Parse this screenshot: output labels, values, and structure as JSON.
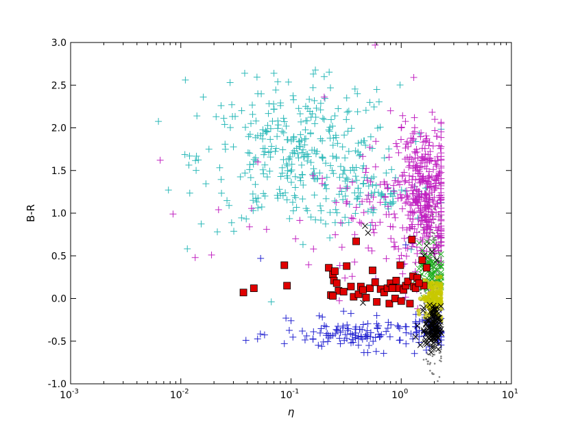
{
  "chart_data": {
    "type": "scatter",
    "title": "",
    "xlabel": "η",
    "ylabel": "B-R",
    "xscale": "log",
    "xlim": [
      0.001,
      10
    ],
    "ylim": [
      -1.0,
      3.0
    ],
    "grid": false,
    "x_ticks": [
      {
        "value": 0.001,
        "base": "10",
        "exp": "-3"
      },
      {
        "value": 0.01,
        "base": "10",
        "exp": "-2"
      },
      {
        "value": 0.1,
        "base": "10",
        "exp": "-1"
      },
      {
        "value": 1,
        "base": "10",
        "exp": "0"
      },
      {
        "value": 10,
        "base": "10",
        "exp": "1"
      }
    ],
    "y_ticks": [
      "-1.0",
      "-0.5",
      "0.0",
      "0.5",
      "1.0",
      "1.5",
      "2.0",
      "2.5",
      "3.0"
    ],
    "series": [
      {
        "marker": "dot",
        "color": "#808080",
        "clusters": [
          {
            "x": 2.0,
            "y": 0.3,
            "sx": 0.06,
            "sy": 0.45,
            "n": 260
          },
          {
            "x": 1.95,
            "y": -0.7,
            "sx": 0.06,
            "sy": 0.15,
            "n": 40
          }
        ],
        "points": [
          [
            2.2,
            0.3
          ],
          [
            2.1,
            0.2
          ],
          [
            1.5,
            0.1
          ]
        ]
      },
      {
        "marker": "plus",
        "color": "#2ab8b8",
        "clusters": [
          {
            "x": 0.12,
            "y": 1.65,
            "sx": 0.45,
            "sy": 0.42,
            "n": 330
          },
          {
            "x": 0.6,
            "y": 1.2,
            "sx": 0.3,
            "sy": 0.12,
            "n": 60
          }
        ],
        "points": [
          [
            0.011,
            2.56
          ],
          [
            0.016,
            2.36
          ],
          [
            0.014,
            2.14
          ],
          [
            0.028,
            2.53
          ],
          [
            0.038,
            2.64
          ],
          [
            0.07,
            2.64
          ],
          [
            0.2,
            2.6
          ],
          [
            0.4,
            2.4
          ],
          [
            0.13,
            1.66
          ],
          [
            0.018,
            1.75
          ],
          [
            0.012,
            1.67
          ],
          [
            0.025,
            2.04
          ],
          [
            0.05,
            2.4
          ],
          [
            0.32,
            2.35
          ],
          [
            0.6,
            2.45
          ]
        ]
      },
      {
        "marker": "plus",
        "color": "#c020c0",
        "clusters": [
          {
            "x": 1.6,
            "y": 1.2,
            "sx": 0.12,
            "sy": 0.42,
            "n": 380
          },
          {
            "x": 0.7,
            "y": 1.0,
            "sx": 0.32,
            "sy": 0.35,
            "n": 90
          }
        ],
        "points": [
          [
            0.0065,
            1.62
          ],
          [
            0.0085,
            0.99
          ],
          [
            0.0135,
            0.48
          ],
          [
            0.019,
            0.51
          ],
          [
            0.022,
            1.04
          ],
          [
            0.042,
            0.84
          ],
          [
            0.06,
            0.81
          ],
          [
            0.11,
            0.7
          ],
          [
            1.3,
            2.59
          ],
          [
            0.58,
            2.97
          ],
          [
            0.2,
            2.36
          ],
          [
            0.8,
            2.2
          ],
          [
            1.0,
            2.0
          ],
          [
            0.05,
            1.6
          ],
          [
            0.29,
            0.6
          ],
          [
            0.16,
            0.58
          ]
        ]
      },
      {
        "marker": "plus",
        "color": "#2020d0",
        "clusters": [
          {
            "x": 0.5,
            "y": -0.42,
            "sx": 0.38,
            "sy": 0.09,
            "n": 130
          },
          {
            "x": 1.8,
            "y": -0.35,
            "sx": 0.08,
            "sy": 0.12,
            "n": 30
          }
        ],
        "points": [
          [
            0.039,
            -0.49
          ],
          [
            0.053,
            0.47
          ],
          [
            0.09,
            -0.23
          ],
          [
            0.1,
            -0.26
          ],
          [
            0.19,
            -0.56
          ],
          [
            0.16,
            -0.39
          ],
          [
            0.3,
            -0.15
          ],
          [
            0.6,
            -0.2
          ],
          [
            1.1,
            0.63
          ],
          [
            0.9,
            0.2
          ],
          [
            0.45,
            0.1
          ]
        ]
      },
      {
        "marker": "cross",
        "color": "#20b020",
        "clusters": [
          {
            "x": 1.85,
            "y": 0.3,
            "sx": 0.07,
            "sy": 0.14,
            "n": 70
          }
        ],
        "points": [
          [
            1.45,
            0.35
          ],
          [
            2.3,
            0.15
          ]
        ]
      },
      {
        "marker": "dot-large",
        "color": "#c8c800",
        "clusters": [
          {
            "x": 1.95,
            "y": 0.0,
            "sx": 0.05,
            "sy": 0.12,
            "n": 140
          }
        ],
        "points": []
      },
      {
        "marker": "cross",
        "color": "#000000",
        "clusters": [
          {
            "x": 1.95,
            "y": -0.35,
            "sx": 0.035,
            "sy": 0.13,
            "n": 120
          }
        ],
        "points": [
          [
            0.47,
            0.85
          ],
          [
            0.5,
            0.77
          ],
          [
            0.45,
            -0.05
          ],
          [
            1.7,
            0.62
          ],
          [
            1.6,
            0.5
          ],
          [
            1.4,
            -0.32
          ],
          [
            1.35,
            -0.45
          ],
          [
            2.1,
            0.45
          ],
          [
            1.9,
            0.55
          ]
        ]
      },
      {
        "marker": "square",
        "color": "#e00000",
        "clusters": [],
        "points": [
          [
            0.037,
            0.07
          ],
          [
            0.046,
            0.12
          ],
          [
            0.087,
            0.39
          ],
          [
            0.092,
            0.15
          ],
          [
            0.23,
            0.04
          ],
          [
            0.22,
            0.36
          ],
          [
            0.24,
            0.28
          ],
          [
            0.25,
            0.32
          ],
          [
            0.245,
            0.21
          ],
          [
            0.26,
            0.18
          ],
          [
            0.27,
            0.09
          ],
          [
            0.24,
            0.03
          ],
          [
            0.3,
            0.08
          ],
          [
            0.32,
            0.38
          ],
          [
            0.35,
            0.14
          ],
          [
            0.37,
            0.02
          ],
          [
            0.39,
            0.67
          ],
          [
            0.41,
            0.05
          ],
          [
            0.43,
            0.14
          ],
          [
            0.45,
            0.1
          ],
          [
            0.48,
            0.01
          ],
          [
            0.52,
            0.12
          ],
          [
            0.55,
            0.33
          ],
          [
            0.58,
            0.19
          ],
          [
            0.6,
            -0.04
          ],
          [
            0.65,
            0.11
          ],
          [
            0.7,
            0.07
          ],
          [
            0.75,
            0.12
          ],
          [
            0.78,
            -0.06
          ],
          [
            0.8,
            0.18
          ],
          [
            0.85,
            0.13
          ],
          [
            0.88,
            0.0
          ],
          [
            0.9,
            0.21
          ],
          [
            0.95,
            0.12
          ],
          [
            1.0,
            -0.03
          ],
          [
            1.05,
            0.1
          ],
          [
            1.1,
            0.15
          ],
          [
            1.15,
            0.2
          ],
          [
            1.2,
            -0.06
          ],
          [
            1.25,
            0.69
          ],
          [
            1.28,
            0.26
          ],
          [
            1.3,
            0.14
          ],
          [
            1.35,
            0.12
          ],
          [
            1.4,
            0.24
          ],
          [
            1.55,
            0.45
          ],
          [
            1.6,
            0.15
          ],
          [
            1.7,
            0.36
          ],
          [
            0.98,
            0.39
          ],
          [
            0.83,
            0.12
          ],
          [
            1.45,
            0.18
          ]
        ]
      }
    ]
  }
}
